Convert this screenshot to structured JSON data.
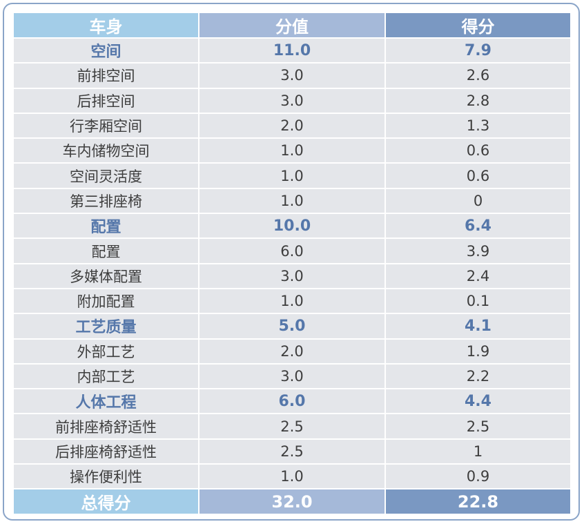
{
  "header": {
    "col1": "车身",
    "col2": "分值",
    "col3": "得分"
  },
  "rows": [
    {
      "name": "空间",
      "value": "11.0",
      "score": "7.9",
      "type": "group"
    },
    {
      "name": "前排空间",
      "value": "3.0",
      "score": "2.6",
      "type": "item"
    },
    {
      "name": "后排空间",
      "value": "3.0",
      "score": "2.8",
      "type": "item"
    },
    {
      "name": "行李厢空间",
      "value": "2.0",
      "score": "1.3",
      "type": "item"
    },
    {
      "name": "车内储物空间",
      "value": "1.0",
      "score": "0.6",
      "type": "item"
    },
    {
      "name": "空间灵活度",
      "value": "1.0",
      "score": "0.6",
      "type": "item"
    },
    {
      "name": "第三排座椅",
      "value": "1.0",
      "score": "0",
      "type": "item"
    },
    {
      "name": "配置",
      "value": "10.0",
      "score": "6.4",
      "type": "group"
    },
    {
      "name": "配置",
      "value": "6.0",
      "score": "3.9",
      "type": "item"
    },
    {
      "name": "多媒体配置",
      "value": "3.0",
      "score": "2.4",
      "type": "item"
    },
    {
      "name": "附加配置",
      "value": "1.0",
      "score": "0.1",
      "type": "item"
    },
    {
      "name": "工艺质量",
      "value": "5.0",
      "score": "4.1",
      "type": "group"
    },
    {
      "name": "外部工艺",
      "value": "2.0",
      "score": "1.9",
      "type": "item"
    },
    {
      "name": "内部工艺",
      "value": "3.0",
      "score": "2.2",
      "type": "item"
    },
    {
      "name": "人体工程",
      "value": "6.0",
      "score": "4.4",
      "type": "group"
    },
    {
      "name": "前排座椅舒适性",
      "value": "2.5",
      "score": "2.5",
      "type": "item"
    },
    {
      "name": "后排座椅舒适性",
      "value": "2.5",
      "score": "1",
      "type": "item"
    },
    {
      "name": "操作便利性",
      "value": "1.0",
      "score": "0.9",
      "type": "item"
    }
  ],
  "total": {
    "label": "总得分",
    "value": "32.0",
    "score": "22.8"
  }
}
